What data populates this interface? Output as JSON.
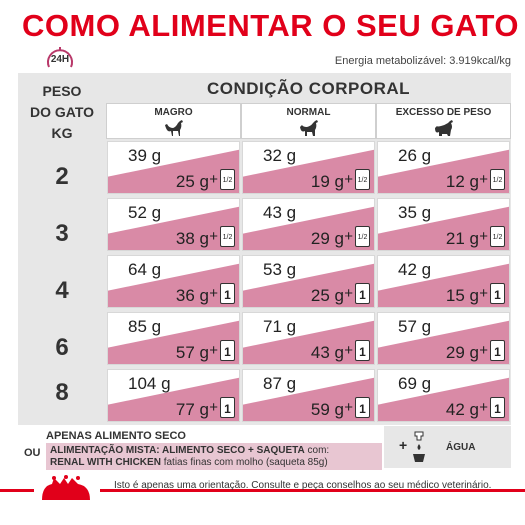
{
  "title": "COMO ALIMENTAR O SEU GATO",
  "clock_label": "24H",
  "energy": "Energia metabolizável: 3.919kcal/kg",
  "weight_header": [
    "PESO",
    "DO GATO",
    "KG"
  ],
  "condition_header": "CONDIÇÃO CORPORAL",
  "columns": [
    "MAGRO",
    "NORMAL",
    "EXCESSO DE PESO"
  ],
  "rows": [
    {
      "weight": "2",
      "cells": [
        {
          "dry": "39 g",
          "mixed": "25 g",
          "pouch": "1/2"
        },
        {
          "dry": "32 g",
          "mixed": "19 g",
          "pouch": "1/2"
        },
        {
          "dry": "26 g",
          "mixed": "12 g",
          "pouch": "1/2"
        }
      ]
    },
    {
      "weight": "3",
      "cells": [
        {
          "dry": "52 g",
          "mixed": "38 g",
          "pouch": "1/2"
        },
        {
          "dry": "43 g",
          "mixed": "29 g",
          "pouch": "1/2"
        },
        {
          "dry": "35 g",
          "mixed": "21 g",
          "pouch": "1/2"
        }
      ]
    },
    {
      "weight": "4",
      "cells": [
        {
          "dry": "64 g",
          "mixed": "36 g",
          "pouch": "1"
        },
        {
          "dry": "53 g",
          "mixed": "25 g",
          "pouch": "1"
        },
        {
          "dry": "42 g",
          "mixed": "15 g",
          "pouch": "1"
        }
      ]
    },
    {
      "weight": "6",
      "cells": [
        {
          "dry": "85 g",
          "mixed": "57 g",
          "pouch": "1"
        },
        {
          "dry": "71 g",
          "mixed": "43 g",
          "pouch": "1"
        },
        {
          "dry": "57 g",
          "mixed": "29 g",
          "pouch": "1"
        }
      ]
    },
    {
      "weight": "8",
      "cells": [
        {
          "dry": "104 g",
          "mixed": "77 g",
          "pouch": "1"
        },
        {
          "dry": "87 g",
          "mixed": "59 g",
          "pouch": "1"
        },
        {
          "dry": "69 g",
          "mixed": "42 g",
          "pouch": "1"
        }
      ]
    }
  ],
  "plus_sign": "+",
  "legend": {
    "dry_only": "APENAS ALIMENTO SECO",
    "or": "OU",
    "mixed_bold1": "ALIMENTAÇÃO MISTA: ALIMENTO SECO + SAQUETA",
    "mixed_normal1": " com:",
    "mixed_bold2": "RENAL WITH CHICKEN",
    "mixed_normal2": " fatias finas com molho (saqueta 85g)",
    "water_plus": "+",
    "water": "ÁGUA"
  },
  "footnote": "Isto é apenas uma orientação. Consulte e peça conselhos ao seu médico veterinário.",
  "colors": {
    "brand_red": "#e1001a",
    "pink": "#d98aa6",
    "grey": "#e7e7e7"
  },
  "icons": [
    "clock-icon",
    "cat-thin-icon",
    "cat-normal-icon",
    "cat-overweight-icon",
    "pouch-icon",
    "water-bowl-icon",
    "royal-canin-logo"
  ]
}
